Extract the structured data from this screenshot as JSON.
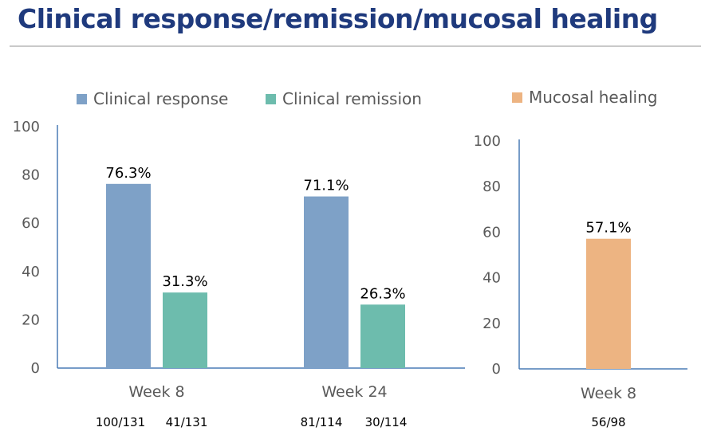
{
  "title": "Clinical response/remission/mucosal healing",
  "chart_data": [
    {
      "type": "bar",
      "categories": [
        "Week 8",
        "Week 24"
      ],
      "series": [
        {
          "name": "Clinical response",
          "values": [
            76.3,
            71.1
          ],
          "labels": [
            "76.3%",
            "71.1%"
          ],
          "counts": [
            "100/131",
            "81/114"
          ],
          "color": "#7ea1c7"
        },
        {
          "name": "Clinical remission",
          "values": [
            31.3,
            26.3
          ],
          "labels": [
            "31.3%",
            "26.3%"
          ],
          "counts": [
            "41/131",
            "30/114"
          ],
          "color": "#6dbcad"
        }
      ],
      "ylim": [
        0,
        100
      ],
      "yticks": [
        "0",
        "20",
        "40",
        "60",
        "80",
        "100"
      ],
      "legend": "top"
    },
    {
      "type": "bar",
      "categories": [
        "Week 8"
      ],
      "series": [
        {
          "name": "Mucosal healing",
          "values": [
            57.1
          ],
          "labels": [
            "57.1%"
          ],
          "counts": [
            "56/98"
          ],
          "color": "#edb482"
        }
      ],
      "ylim": [
        0,
        100
      ],
      "yticks": [
        "0",
        "20",
        "40",
        "60",
        "80",
        "100"
      ],
      "legend": "top"
    }
  ]
}
